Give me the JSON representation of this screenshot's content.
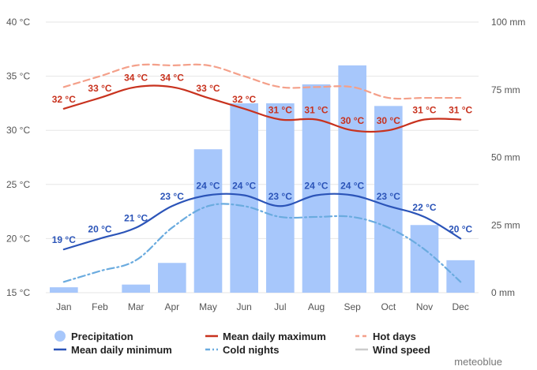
{
  "chart_data": {
    "type": "bar+line",
    "brand": "meteoblue",
    "categories": [
      "Jan",
      "Feb",
      "Mar",
      "Apr",
      "May",
      "Jun",
      "Jul",
      "Aug",
      "Sep",
      "Oct",
      "Nov",
      "Dec"
    ],
    "left_axis": {
      "ticks": [
        "15 °C",
        "20 °C",
        "25 °C",
        "30 °C",
        "35 °C",
        "40 °C"
      ],
      "tick_values": [
        15,
        20,
        25,
        30,
        35,
        40
      ],
      "range": [
        15,
        40
      ]
    },
    "right_axis": {
      "ticks": [
        "0 mm",
        "25 mm",
        "50 mm",
        "75 mm",
        "100 mm"
      ],
      "tick_values": [
        0,
        25,
        50,
        75,
        100
      ],
      "range": [
        0,
        100
      ]
    },
    "precipitation": {
      "name": "Precipitation",
      "unit": "mm",
      "color": "#a7c7fb",
      "values": [
        2,
        0,
        3,
        11,
        53,
        70,
        70,
        77,
        84,
        69,
        25,
        12
      ]
    },
    "series": [
      {
        "name": "Mean daily maximum",
        "color": "#c8321e",
        "style": "solid",
        "values": [
          32,
          33,
          34,
          34,
          33,
          32,
          31,
          31,
          30,
          30,
          31,
          31
        ],
        "labels": [
          "32 °C",
          "33 °C",
          "34 °C",
          "34 °C",
          "33 °C",
          "32 °C",
          "31 °C",
          "31 °C",
          "30 °C",
          "30 °C",
          "31 °C",
          "31 °C"
        ]
      },
      {
        "name": "Hot days",
        "color": "#f4a08a",
        "style": "dashed",
        "values": [
          34,
          35,
          36,
          36,
          36,
          35,
          34,
          34,
          34,
          33,
          33,
          33
        ]
      },
      {
        "name": "Mean daily minimum",
        "color": "#2b54b8",
        "style": "solid",
        "values": [
          19,
          20,
          21,
          23,
          24,
          24,
          23,
          24,
          24,
          23,
          22,
          20
        ],
        "labels": [
          "19 °C",
          "20 °C",
          "21 °C",
          "23 °C",
          "24 °C",
          "24 °C",
          "23 °C",
          "24 °C",
          "24 °C",
          "23 °C",
          "22 °C",
          "20 °C"
        ]
      },
      {
        "name": "Cold nights",
        "color": "#6aabdf",
        "style": "dashdot",
        "values": [
          16,
          17,
          18,
          21,
          23,
          23,
          22,
          22,
          22,
          21,
          19,
          16
        ]
      }
    ],
    "legend": [
      {
        "name": "Precipitation",
        "marker": "circle",
        "color": "#a7c7fb"
      },
      {
        "name": "Mean daily maximum",
        "marker": "line",
        "color": "#c8321e"
      },
      {
        "name": "Hot days",
        "marker": "dash",
        "color": "#f4a08a"
      },
      {
        "name": "Mean daily minimum",
        "marker": "line",
        "color": "#2b54b8"
      },
      {
        "name": "Cold nights",
        "marker": "dashdot",
        "color": "#6aabdf"
      },
      {
        "name": "Wind speed",
        "marker": "line",
        "color": "#cccccc",
        "disabled": true
      }
    ],
    "grid": true,
    "legend_position": "bottom"
  }
}
